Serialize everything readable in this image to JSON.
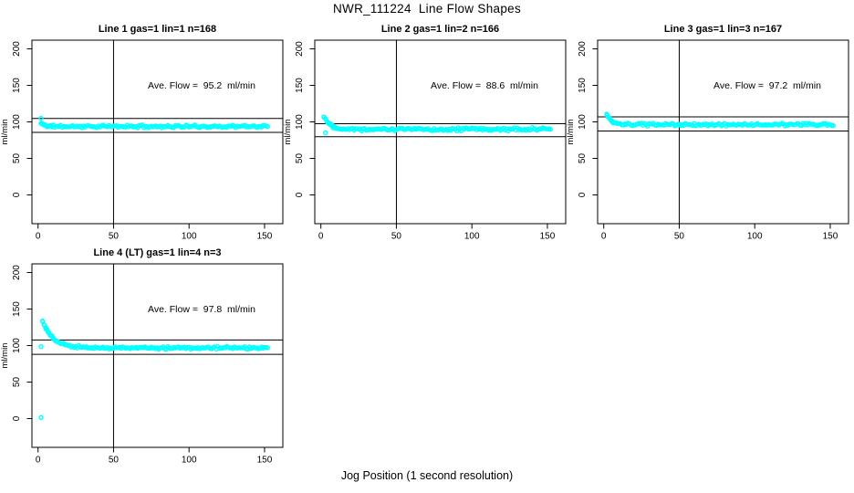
{
  "page": {
    "title": "NWR_111224  Line Flow Shapes",
    "xlabel": "Jog Position (1 second resolution)",
    "ylabel": "ml/min",
    "background_color": "#FFFFFF",
    "point_color": "#00FFFF",
    "line_color": "#000000"
  },
  "axes": {
    "x_ticks": [
      "0",
      "50",
      "100",
      "150"
    ],
    "y_ticks": [
      "0",
      "50",
      "100",
      "150",
      "200"
    ],
    "xlim": [
      -4,
      162
    ],
    "ylim": [
      -40,
      212
    ],
    "grid": false
  },
  "chart_data": [
    {
      "type": "scatter",
      "title": "Line 1 gas=1 lin=1 n=168",
      "annotation": "Ave. Flow =  95.2  ml/min",
      "ave_flow_ml_min": 95.2,
      "n": 168,
      "vline_x": 50,
      "hlines": [
        104.7,
        85.7
      ],
      "trend": {
        "x_start": 2,
        "x_end": 152,
        "start_y": 98,
        "settle_y": 93.8,
        "tau": 2.5,
        "noise": 1.5,
        "seed": 11
      },
      "outliers": [
        [
          2,
          105
        ]
      ]
    },
    {
      "type": "scatter",
      "title": "Line 2 gas=1 lin=2 n=166",
      "annotation": "Ave. Flow =  88.6  ml/min",
      "ave_flow_ml_min": 88.6,
      "n": 166,
      "vline_x": 50,
      "hlines": [
        97.5,
        79.7
      ],
      "trend": {
        "x_start": 2,
        "x_end": 152,
        "start_y": 107,
        "settle_y": 90,
        "tau": 4.5,
        "noise": 1.8,
        "seed": 22
      },
      "outliers": [
        [
          3,
          85
        ]
      ]
    },
    {
      "type": "scatter",
      "title": "Line 3 gas=1 lin=3 n=167",
      "annotation": "Ave. Flow =  97.2  ml/min",
      "ave_flow_ml_min": 97.2,
      "n": 167,
      "vline_x": 50,
      "hlines": [
        106.9,
        87.5
      ],
      "trend": {
        "x_start": 2,
        "x_end": 152,
        "start_y": 110,
        "settle_y": 96.2,
        "tau": 3,
        "noise": 1.5,
        "seed": 33
      },
      "outliers": []
    },
    {
      "type": "scatter",
      "title": "Line 4 (LT) gas=1 lin=4 n=3",
      "annotation": "Ave. Flow =  97.8  ml/min",
      "ave_flow_ml_min": 97.8,
      "n": 3,
      "vline_x": 50,
      "hlines": [
        107.6,
        88.0
      ],
      "trend": {
        "x_start": 3,
        "x_end": 152,
        "start_y": 133,
        "settle_y": 96.8,
        "tau": 7,
        "noise": 1.4,
        "seed": 44
      },
      "outliers": [
        [
          2,
          98.5
        ],
        [
          2,
          1.5
        ]
      ]
    }
  ]
}
